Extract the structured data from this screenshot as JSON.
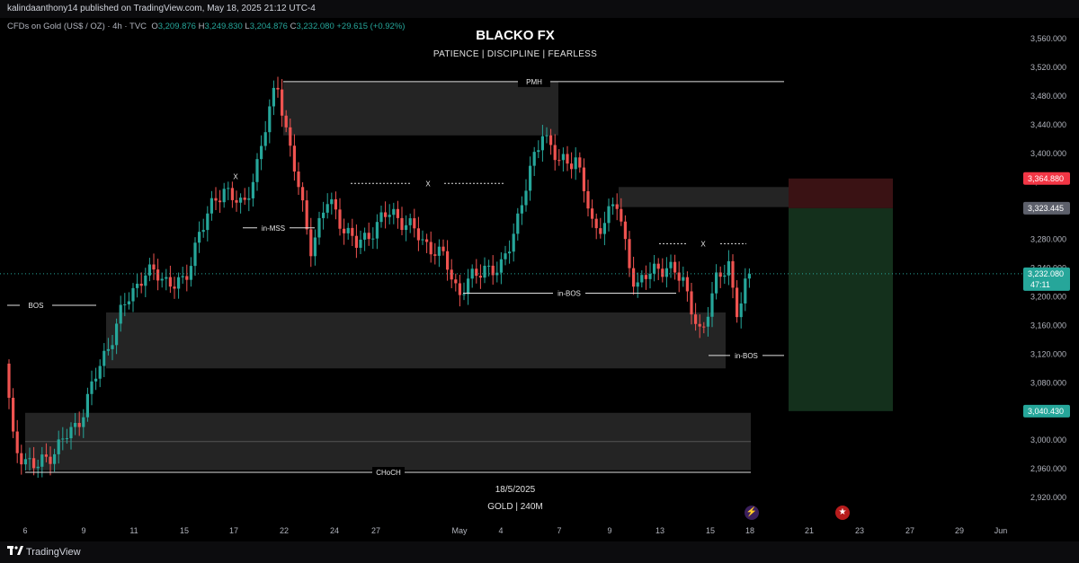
{
  "header": {
    "published": "kalindaanthony14 published on TradingView.com, May 18, 2025 21:12 UTC-4"
  },
  "symbol": {
    "name": "CFDs on Gold (US$ / OZ) · 4h · TVC",
    "open_label": "O",
    "open": "3,209.876",
    "high_label": "H",
    "high": "3,249.830",
    "low_label": "L",
    "low": "3,204.876",
    "close_label": "C",
    "close": "3,232.080",
    "change": "+29.615 (+0.92%)"
  },
  "watermark": {
    "title": "BLACKO FX",
    "subtitle": "PATIENCE  |  DISCIPLINE  |  FEARLESS",
    "date": "18/5/2025",
    "symbol_tf": "GOLD | 240M"
  },
  "footer": {
    "brand": "TradingView"
  },
  "colors": {
    "up": "#26a69a",
    "down": "#ef5350",
    "background": "#000000",
    "zone": "#2a2a2a",
    "target_zone": "#14301c",
    "stop_zone": "#3a1214"
  },
  "icons": [
    "lightning-icon",
    "us-flag-icon",
    "tradingview-logo-icon"
  ],
  "chart_data": {
    "type": "candlestick",
    "title": "",
    "timeframe": "4h",
    "ylim": [
      2900,
      3580
    ],
    "y_axis_ticks": [
      "3,560.000",
      "3,520.000",
      "3,480.000",
      "3,440.000",
      "3,400.000",
      "3,360.000",
      "3,320.000",
      "3,280.000",
      "3,240.000",
      "3,200.000",
      "3,160.000",
      "3,120.000",
      "3,080.000",
      "3,040.000",
      "3,000.000",
      "2,960.000",
      "2,920.000"
    ],
    "x_axis_ticks": [
      "6",
      "9",
      "11",
      "15",
      "17",
      "22",
      "24",
      "27",
      "May",
      "4",
      "7",
      "9",
      "13",
      "15",
      "18",
      "21",
      "23",
      "27",
      "29",
      "Jun"
    ],
    "price_labels": [
      {
        "value": 3364.88,
        "text": "3,364.880",
        "color": "#f23645"
      },
      {
        "value": 3323.445,
        "text": "3,323.445",
        "color": "#5d606b"
      },
      {
        "value": 3232.08,
        "text": "3,232.080",
        "extra": "47:11",
        "color": "#26a69a"
      },
      {
        "value": 3040.43,
        "text": "3,040.430",
        "color": "#26a69a"
      }
    ],
    "current_price": 3232.08,
    "annotations": [
      {
        "text": "PMH",
        "price": 3500
      },
      {
        "text": "X",
        "price": 3368
      },
      {
        "text": "X",
        "price": 3358
      },
      {
        "text": "X",
        "price": 3274
      },
      {
        "text": "in-MSS",
        "price": 3296
      },
      {
        "text": "BOS",
        "price": 3188
      },
      {
        "text": "in-BOS",
        "price": 3205
      },
      {
        "text": "in-BOS",
        "price": 3118
      },
      {
        "text": "CHoCH",
        "price": 2955
      }
    ],
    "zones": [
      {
        "name": "premium-supply",
        "top": 3500,
        "bottom": 3425
      },
      {
        "name": "supply-right",
        "top": 3353,
        "bottom": 3325
      },
      {
        "name": "demand-mid",
        "top": 3178,
        "bottom": 3100
      },
      {
        "name": "demand-low",
        "top": 3038,
        "bottom": 2958
      },
      {
        "name": "short-stop",
        "top": 3364.88,
        "bottom": 3323.445
      },
      {
        "name": "short-target",
        "top": 3323.445,
        "bottom": 3040.43
      }
    ]
  }
}
